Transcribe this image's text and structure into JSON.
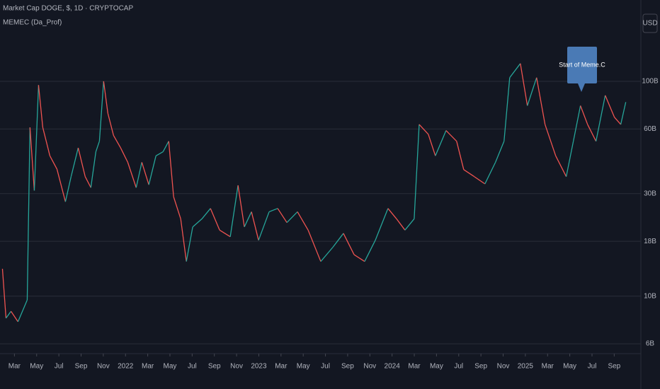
{
  "chart_data": {
    "type": "line",
    "title": "Market Cap DOGE, $, 1D · CRYPTOCAP",
    "subtitle": "MEMEC (Da_Prof)",
    "currency": "USD",
    "annotation": "Start of Meme.C",
    "log_scale": true,
    "grid": true,
    "up_color": "#26a69a",
    "down_color": "#ef5350",
    "xlim": [
      0.7,
      58.4
    ],
    "xticks": [
      {
        "value": 2,
        "label": "Mar"
      },
      {
        "value": 4,
        "label": "May"
      },
      {
        "value": 6,
        "label": "Jul"
      },
      {
        "value": 8,
        "label": "Sep"
      },
      {
        "value": 10,
        "label": "Nov"
      },
      {
        "value": 12,
        "label": "2022"
      },
      {
        "value": 14,
        "label": "Mar"
      },
      {
        "value": 16,
        "label": "May"
      },
      {
        "value": 18,
        "label": "Jul"
      },
      {
        "value": 20,
        "label": "Sep"
      },
      {
        "value": 22,
        "label": "Nov"
      },
      {
        "value": 24,
        "label": "2023"
      },
      {
        "value": 26,
        "label": "Mar"
      },
      {
        "value": 28,
        "label": "May"
      },
      {
        "value": 30,
        "label": "Jul"
      },
      {
        "value": 32,
        "label": "Sep"
      },
      {
        "value": 34,
        "label": "Nov"
      },
      {
        "value": 36,
        "label": "2024"
      },
      {
        "value": 38,
        "label": "Mar"
      },
      {
        "value": 40,
        "label": "May"
      },
      {
        "value": 42,
        "label": "Jul"
      },
      {
        "value": 44,
        "label": "Sep"
      },
      {
        "value": 46,
        "label": "Nov"
      },
      {
        "value": 48,
        "label": "2025"
      },
      {
        "value": 50,
        "label": "Mar"
      },
      {
        "value": 52,
        "label": "May"
      },
      {
        "value": 54,
        "label": "Jul"
      },
      {
        "value": 56,
        "label": "Sep"
      }
    ],
    "ylim": [
      5.4,
      239
    ],
    "yticks": [
      {
        "value": 100,
        "label": "100B"
      },
      {
        "value": 60,
        "label": "60B"
      },
      {
        "value": 30,
        "label": "30B"
      },
      {
        "value": 18,
        "label": "18B"
      },
      {
        "value": 10,
        "label": "10B"
      },
      {
        "value": 6,
        "label": "6B"
      }
    ],
    "x": [
      0.92,
      1.24,
      1.69,
      2.32,
      3.15,
      3.4,
      3.79,
      4.17,
      4.55,
      5.19,
      5.83,
      6.59,
      7.1,
      7.74,
      8.37,
      8.88,
      9.33,
      9.65,
      10.03,
      10.41,
      10.92,
      11.56,
      12.2,
      12.96,
      13.47,
      14.1,
      14.74,
      15.38,
      15.89,
      16.33,
      16.97,
      17.48,
      18.05,
      18.88,
      19.65,
      20.47,
      21.43,
      22.13,
      22.7,
      23.34,
      23.98,
      24.93,
      25.7,
      26.53,
      27.48,
      28.44,
      29.58,
      30.67,
      31.62,
      32.58,
      33.53,
      34.49,
      35.63,
      36.4,
      37.16,
      37.99,
      38.44,
      39.26,
      39.9,
      40.86,
      41.81,
      42.45,
      43.4,
      44.36,
      45.31,
      46.08,
      46.59,
      47.55,
      48.18,
      49.01,
      49.77,
      50.73,
      51.68,
      52.32,
      52.96,
      53.6,
      54.36,
      55.19,
      56.02,
      56.59,
      57.04
    ],
    "values": [
      13.4,
      7.9,
      8.5,
      7.6,
      9.6,
      61,
      31,
      96,
      61,
      45,
      39,
      27.5,
      36,
      49,
      36,
      32,
      47,
      52.6,
      100,
      71,
      56,
      49,
      42,
      32,
      42,
      33,
      45,
      47,
      52.6,
      29,
      22.9,
      14.5,
      21,
      22.9,
      25.6,
      20.3,
      18.9,
      32.8,
      21,
      24.7,
      18.2,
      24.7,
      25.6,
      22,
      24.7,
      20.3,
      14.5,
      16.9,
      19.6,
      15.6,
      14.5,
      18.2,
      25.6,
      22.9,
      20.3,
      22.9,
      63,
      56.7,
      45,
      59,
      52.6,
      38.8,
      36,
      33.3,
      42,
      52.6,
      104,
      121,
      77,
      104,
      63,
      45,
      36,
      52.6,
      77,
      63,
      52.6,
      86,
      68,
      63,
      80
    ]
  }
}
